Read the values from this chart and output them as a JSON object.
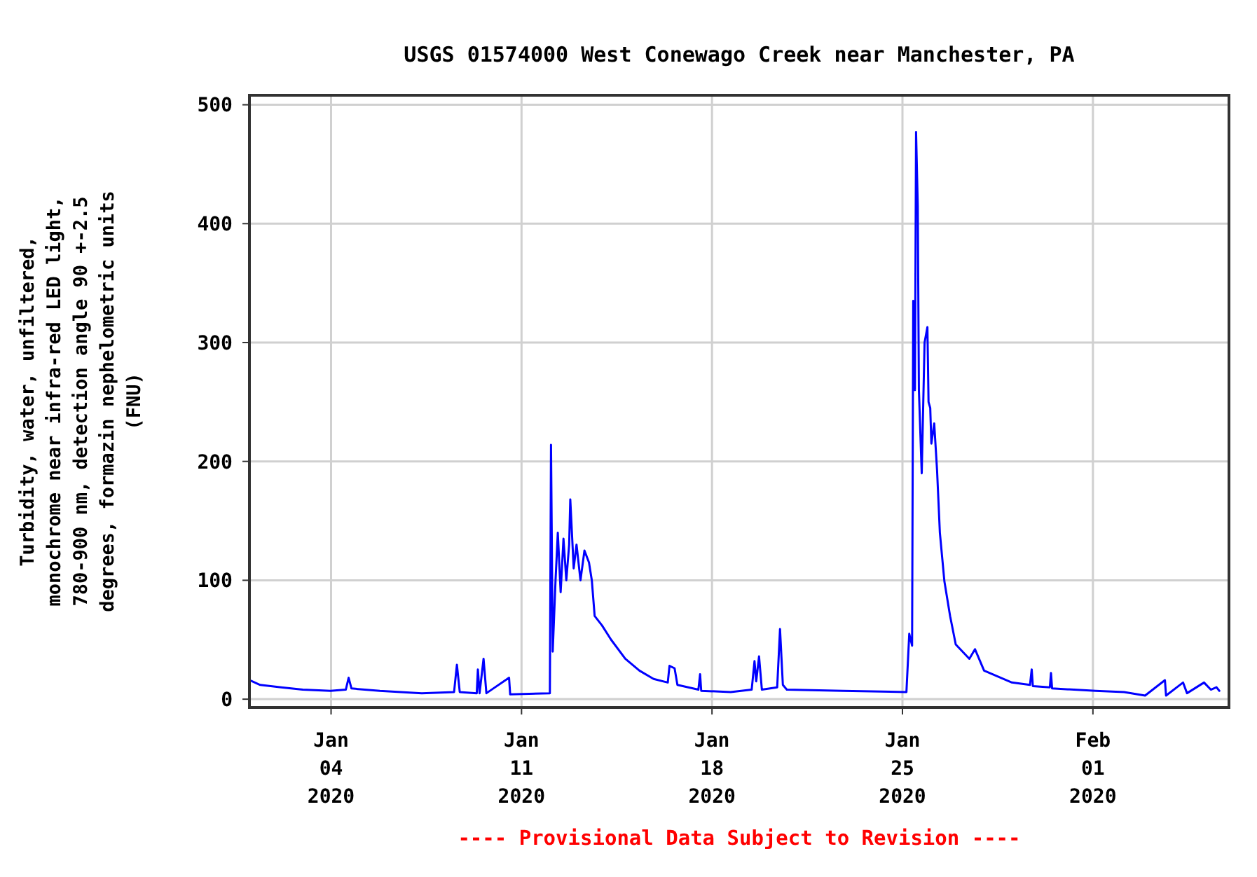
{
  "chart_data": {
    "type": "line",
    "title": "USGS 01574000 West Conewago Creek near Manchester, PA",
    "ylabel": "Turbidity, water, unfiltered,\nmonochrome near infra-red LED light,\n780-900 nm, detection angle 90 +-2.5\ndegrees, formazin nephelometric units\n(FNU)",
    "annotations": [
      "---- Provisional Data Subject to Revision ----"
    ],
    "xlim": [
      "2020-01-01",
      "2020-02-06"
    ],
    "xticks": [
      {
        "value": "2020-01-04",
        "label": "Jan\n04\n2020"
      },
      {
        "value": "2020-01-11",
        "label": "Jan\n11\n2020"
      },
      {
        "value": "2020-01-18",
        "label": "Jan\n18\n2020"
      },
      {
        "value": "2020-01-25",
        "label": "Jan\n25\n2020"
      },
      {
        "value": "2020-02-01",
        "label": "Feb\n01\n2020"
      }
    ],
    "ylim": [
      -7,
      508
    ],
    "yticks": [
      0,
      100,
      200,
      300,
      400,
      500
    ],
    "grid": true,
    "marker": "none",
    "line_style": "solid",
    "x": [
      "2020-01-01T00:00",
      "2020-01-01T09:30",
      "2020-01-02T04:00",
      "2020-01-02T23:00",
      "2020-01-03T23:30",
      "2020-01-04T13:00",
      "2020-01-04T15:30",
      "2020-01-04T18:00",
      "2020-01-05T19:00",
      "2020-01-07T08:00",
      "2020-01-08T12:30",
      "2020-01-08T15:00",
      "2020-01-08T17:30",
      "2020-01-09T08:30",
      "2020-01-09T09:30",
      "2020-01-09T11:00",
      "2020-01-09T14:30",
      "2020-01-09T17:00",
      "2020-01-10T13:00",
      "2020-01-10T14:00",
      "2020-01-12T01:00",
      "2020-01-12T02:00",
      "2020-01-12T03:30",
      "2020-01-12T06:00",
      "2020-01-12T08:00",
      "2020-01-12T10:30",
      "2020-01-12T13:00",
      "2020-01-12T15:30",
      "2020-01-12T18:00",
      "2020-01-12T19:00",
      "2020-01-12T22:00",
      "2020-01-13T00:30",
      "2020-01-13T04:00",
      "2020-01-13T07:30",
      "2020-01-13T11:30",
      "2020-01-13T14:00",
      "2020-01-13T16:30",
      "2020-01-13T23:00",
      "2020-01-14T07:00",
      "2020-01-14T19:30",
      "2020-01-15T08:00",
      "2020-01-15T20:30",
      "2020-01-16T09:00",
      "2020-01-16T10:30",
      "2020-01-16T15:00",
      "2020-01-16T17:30",
      "2020-01-17T12:00",
      "2020-01-17T13:30",
      "2020-01-17T14:30",
      "2020-01-18T16:30",
      "2020-01-19T11:00",
      "2020-01-19T13:30",
      "2020-01-19T15:00",
      "2020-01-19T17:30",
      "2020-01-19T20:00",
      "2020-01-20T09:30",
      "2020-01-20T12:00",
      "2020-01-20T14:30",
      "2020-01-20T18:00",
      "2020-01-22T19:30",
      "2020-01-25T03:30",
      "2020-01-25T06:00",
      "2020-01-25T08:30",
      "2020-01-25T09:30",
      "2020-01-25T11:00",
      "2020-01-25T12:00",
      "2020-01-25T13:30",
      "2020-01-25T14:30",
      "2020-01-25T17:00",
      "2020-01-25T19:30",
      "2020-01-25T22:00",
      "2020-01-25T23:00",
      "2020-01-26T00:30",
      "2020-01-26T01:30",
      "2020-01-26T04:00",
      "2020-01-26T06:30",
      "2020-01-26T09:00",
      "2020-01-26T13:00",
      "2020-01-26T18:00",
      "2020-01-26T23:00",
      "2020-01-27T11:00",
      "2020-01-27T16:00",
      "2020-01-28T00:00",
      "2020-01-29T00:30",
      "2020-01-29T16:30",
      "2020-01-29T18:00",
      "2020-01-29T19:00",
      "2020-01-30T10:00",
      "2020-01-30T11:00",
      "2020-01-30T12:00",
      "2020-02-01T02:30",
      "2020-02-02T03:30",
      "2020-02-02T22:00",
      "2020-02-03T15:30",
      "2020-02-03T16:30",
      "2020-02-04T07:30",
      "2020-02-04T11:00",
      "2020-02-05T02:00",
      "2020-02-05T08:00",
      "2020-02-05T13:00",
      "2020-02-05T15:30"
    ],
    "series": [
      {
        "color": "#0000ff",
        "values": [
          16,
          12,
          10,
          8,
          7,
          8,
          18,
          9,
          7,
          5,
          6,
          29,
          6,
          5,
          25,
          5,
          34,
          5,
          18,
          4,
          5,
          214,
          40,
          100,
          140,
          90,
          135,
          100,
          130,
          168,
          110,
          130,
          100,
          125,
          115,
          100,
          70,
          62,
          50,
          34,
          24,
          17,
          14,
          28,
          26,
          12,
          8,
          21,
          7,
          6,
          8,
          32,
          15,
          36,
          8,
          10,
          59,
          12,
          8,
          7,
          6,
          55,
          45,
          335,
          260,
          477,
          415,
          260,
          190,
          300,
          313,
          250,
          245,
          215,
          232,
          193,
          140,
          99,
          70,
          46,
          34,
          42,
          24,
          14,
          12,
          25,
          11,
          10,
          22,
          9,
          7,
          6,
          3,
          16,
          3,
          14,
          5,
          14,
          8,
          10,
          7
        ]
      }
    ]
  }
}
